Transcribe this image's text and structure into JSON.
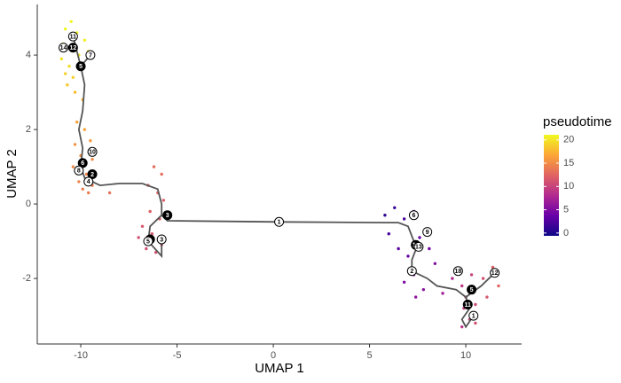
{
  "chart_data": {
    "type": "scatter",
    "xlabel": "UMAP 1",
    "ylabel": "UMAP 2",
    "xlim": [
      -12.26,
      12.9
    ],
    "ylim": [
      -3.76,
      5.36
    ],
    "xticks": [
      -10,
      -5,
      0,
      5,
      10
    ],
    "yticks": [
      -2,
      0,
      2,
      4
    ],
    "colorbar_title": "pseudotime",
    "clim": [
      -0.6,
      21.1
    ],
    "colorbar_ticks": [
      0,
      5,
      10,
      15,
      20
    ],
    "colorscale": [
      "#0d0887",
      "#6a00a8",
      "#b12a90",
      "#e16462",
      "#fca636",
      "#f0f921"
    ],
    "points": {
      "x": [
        -10.8,
        -10.5,
        -10.2,
        -10.9,
        -11.0,
        -10.6,
        -10.4,
        -10.7,
        -9.8,
        -9.6,
        -10.3,
        -9.9,
        -10.8,
        -10.1,
        -10.2,
        -9.8,
        -9.5,
        -10.3,
        -10.0,
        -9.4,
        -10.4,
        -9.7,
        -10.1,
        -9.4,
        -9.9,
        -9.6,
        -8.5,
        -6.2,
        -5.8,
        -6.5,
        -6.0,
        -5.7,
        -6.4,
        -5.9,
        -6.8,
        -6.3,
        -5.8,
        -6.1,
        -6.6,
        -7.0,
        5.8,
        6.3,
        6.8,
        7.3,
        6.0,
        6.5,
        7.0,
        7.6,
        8.1,
        7.3,
        6.8,
        7.8,
        8.4,
        7.4,
        8.8,
        9.3,
        9.8,
        10.3,
        10.9,
        11.4,
        11.7,
        11.1,
        10.5,
        9.9,
        10.2,
        9.8,
        10.5,
        10.0
      ],
      "y": [
        4.7,
        4.9,
        4.6,
        4.3,
        3.9,
        3.7,
        3.4,
        3.2,
        4.4,
        4.1,
        3.0,
        2.8,
        3.5,
        4.0,
        2.2,
        2.0,
        1.7,
        1.6,
        1.3,
        1.2,
        1.0,
        0.8,
        0.6,
        0.5,
        0.4,
        0.3,
        0.3,
        1.0,
        0.8,
        0.5,
        0.3,
        0.1,
        -0.2,
        -0.4,
        -0.6,
        -0.8,
        -1.1,
        -1.3,
        -1.2,
        -0.9,
        -0.3,
        -0.1,
        -0.4,
        -0.2,
        -0.8,
        -1.2,
        -1.4,
        -0.9,
        -1.2,
        -1.9,
        -2.1,
        -2.3,
        -1.6,
        -2.5,
        -2.4,
        -2.0,
        -2.2,
        -1.9,
        -2.0,
        -1.7,
        -2.2,
        -2.5,
        -2.7,
        -2.8,
        -3.1,
        -3.3,
        -3.2,
        -2.5
      ],
      "pseudotime": [
        21,
        21,
        20.5,
        20.5,
        20,
        19.5,
        19,
        18.5,
        20.5,
        20,
        18,
        17.5,
        19,
        20,
        16.5,
        16.5,
        16,
        15.5,
        15.5,
        15,
        15,
        14.5,
        14.5,
        14,
        14,
        14,
        13.5,
        13,
        13,
        12.5,
        12.5,
        12,
        12,
        12,
        11.5,
        11.5,
        11.5,
        11,
        11,
        11,
        1,
        1.5,
        2,
        2.5,
        2,
        3,
        3.5,
        3.5,
        4,
        4.5,
        5,
        5.5,
        5,
        6,
        7,
        8,
        9,
        10,
        11,
        12,
        12.5,
        11.5,
        10.5,
        9.5,
        10,
        9,
        11,
        9.5
      ]
    },
    "trajectory": {
      "x": [
        -9.5,
        -10.0,
        -9.8,
        -9.9,
        -10.1,
        -9.9,
        -10.0,
        -9.8,
        -9.4,
        -9.0,
        -8.0,
        -6.8,
        -6.0,
        -5.8,
        -5.8,
        -5.5,
        0.3,
        5.8,
        6.5,
        7.0,
        7.3,
        7.5,
        7.2,
        7.2,
        8.0,
        8.5,
        9.5,
        10.0,
        10.2,
        9.8,
        10.0,
        10.4,
        null,
        -5.8,
        -6.4,
        -6.5,
        -5.8,
        -5.8,
        null,
        10.0,
        10.8,
        11.5,
        null,
        -10.4,
        -10.0,
        null,
        -10.9,
        -10.4
      ],
      "y": [
        4.0,
        3.7,
        3.2,
        2.5,
        2.0,
        1.5,
        1.0,
        0.7,
        0.6,
        0.5,
        0.55,
        0.55,
        0.4,
        0.0,
        -0.3,
        -0.45,
        -0.48,
        -0.5,
        -0.5,
        -0.6,
        -1.0,
        -1.1,
        -1.5,
        -1.8,
        -2.0,
        -2.2,
        -2.3,
        -2.5,
        -2.8,
        -3.1,
        -3.3,
        -3.0,
        null,
        -0.3,
        -0.6,
        -1.0,
        -1.4,
        -0.95,
        null,
        -2.5,
        -2.2,
        -1.85,
        null,
        4.5,
        3.7,
        null,
        4.2,
        4.2
      ]
    },
    "nodes": [
      {
        "x": -10.4,
        "y": 4.5,
        "label": "11",
        "fill": "white"
      },
      {
        "x": -10.9,
        "y": 4.2,
        "label": "14",
        "fill": "white"
      },
      {
        "x": -10.4,
        "y": 4.2,
        "label": "12",
        "fill": "black"
      },
      {
        "x": -9.5,
        "y": 4.0,
        "label": "7",
        "fill": "white"
      },
      {
        "x": -10.0,
        "y": 3.7,
        "label": "5",
        "fill": "black"
      },
      {
        "x": -9.4,
        "y": 1.4,
        "label": "10",
        "fill": "white"
      },
      {
        "x": -9.9,
        "y": 1.1,
        "label": "6",
        "fill": "black"
      },
      {
        "x": -10.1,
        "y": 0.9,
        "label": "8",
        "fill": "white"
      },
      {
        "x": -9.4,
        "y": 0.8,
        "label": "2",
        "fill": "black"
      },
      {
        "x": -9.6,
        "y": 0.6,
        "label": "4",
        "fill": "white"
      },
      {
        "x": -5.5,
        "y": -0.3,
        "label": "3",
        "fill": "black"
      },
      {
        "x": -6.4,
        "y": -0.95,
        "label": "2",
        "fill": "black"
      },
      {
        "x": -6.5,
        "y": -1.0,
        "label": "5",
        "fill": "white"
      },
      {
        "x": -5.8,
        "y": -0.95,
        "label": "3",
        "fill": "white"
      },
      {
        "x": 0.3,
        "y": -0.48,
        "label": "1",
        "fill": "white"
      },
      {
        "x": 7.3,
        "y": -0.3,
        "label": "6",
        "fill": "white"
      },
      {
        "x": 8.0,
        "y": -0.75,
        "label": "9",
        "fill": "white"
      },
      {
        "x": 7.4,
        "y": -1.1,
        "label": "10",
        "fill": "black"
      },
      {
        "x": 7.55,
        "y": -1.15,
        "label": "13",
        "fill": "white"
      },
      {
        "x": 7.2,
        "y": -1.8,
        "label": "2",
        "fill": "white"
      },
      {
        "x": 9.6,
        "y": -1.8,
        "label": "18",
        "fill": "white"
      },
      {
        "x": 11.5,
        "y": -1.85,
        "label": "12",
        "fill": "white"
      },
      {
        "x": 10.3,
        "y": -2.3,
        "label": "5",
        "fill": "black"
      },
      {
        "x": 10.1,
        "y": -2.7,
        "label": "11",
        "fill": "black"
      },
      {
        "x": 10.4,
        "y": -3.0,
        "label": "1",
        "fill": "white"
      }
    ]
  }
}
